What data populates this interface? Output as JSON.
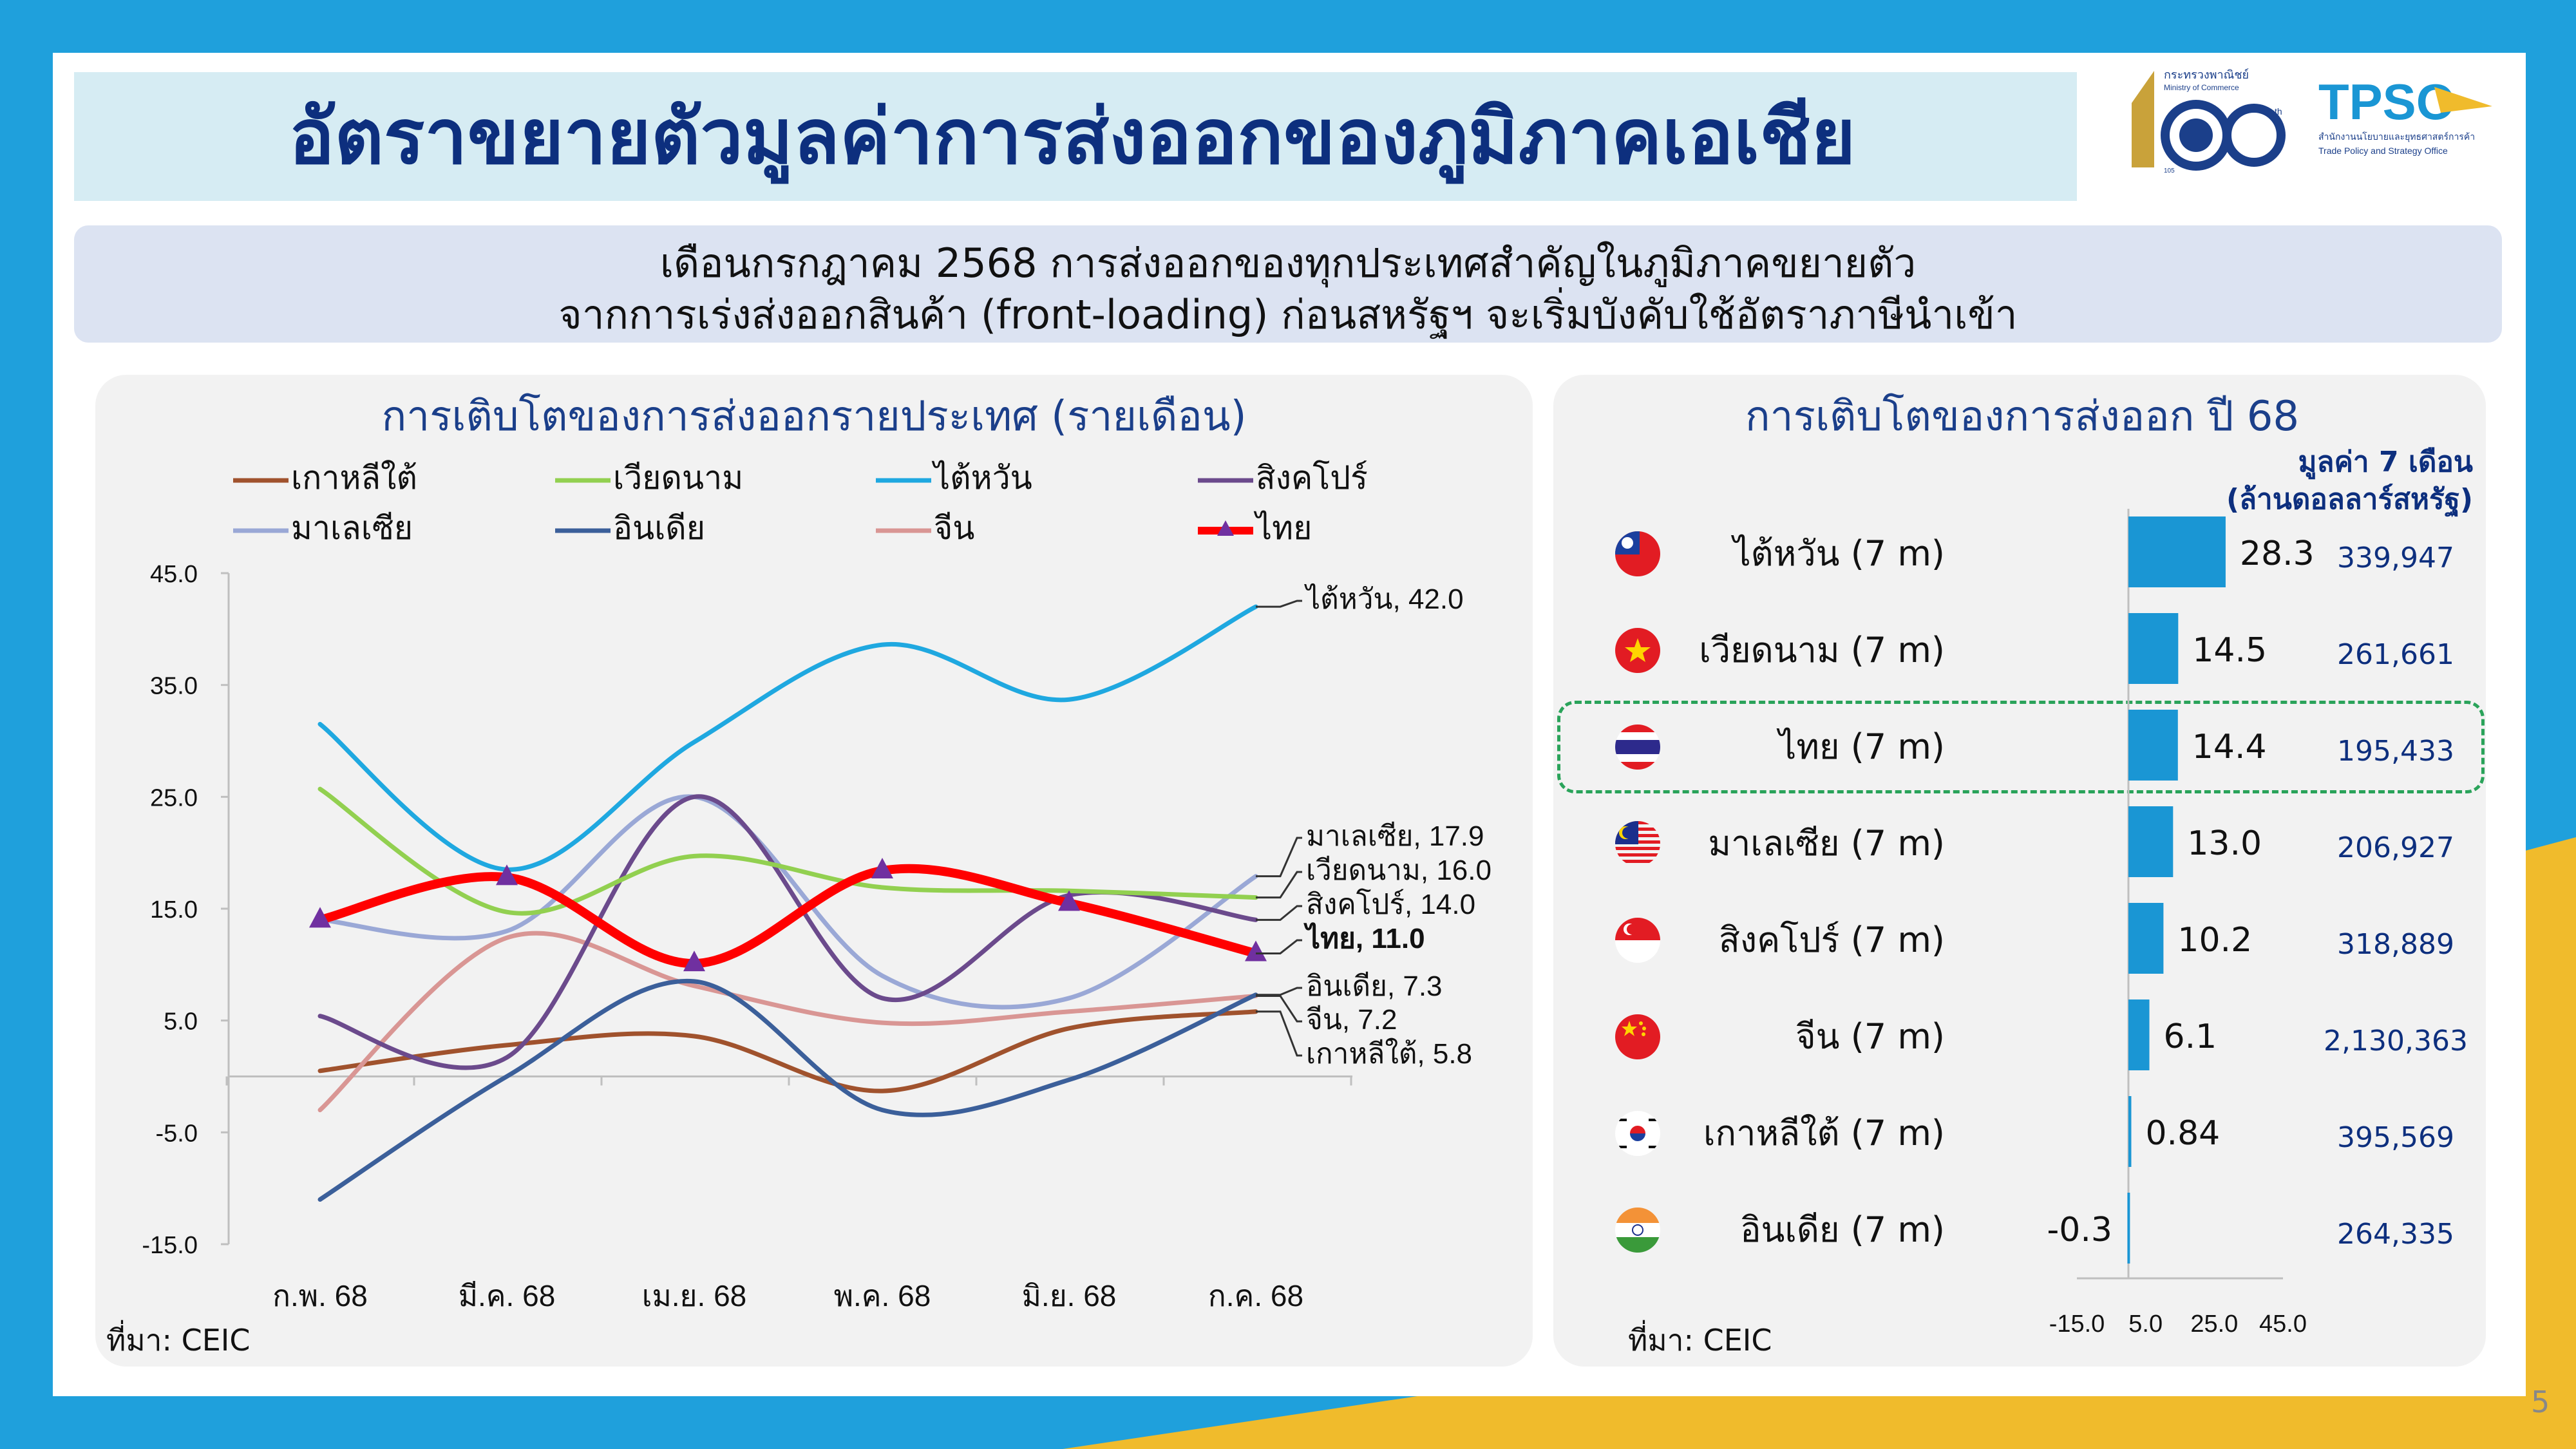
{
  "title": "อัตราขยายตัวมูลค่าการส่งออกของภูมิภาคเอเชีย",
  "subtitle_line1": "เดือนกรกฎาคม 2568 การส่งออกของทุกประเทศสำคัญในภูมิภาคขยายตัว",
  "subtitle_line2": "จากการเร่งส่งออกสินค้า (front-loading) ก่อนสหรัฐฯ จะเริ่มบังคับใช้อัตราภาษีนำเข้า",
  "logos": {
    "moc_line1": "กระทรวงพาณิชย์",
    "moc_line2": "Ministry of Commerce",
    "moc_number": "105",
    "moc_suffix": "th",
    "tpso_name": "TPSO",
    "tpso_th": "สำนักงานนโยบายและยุทธศาสตร์การค้า",
    "tpso_en": "Trade Policy and Strategy Office"
  },
  "page_number": "5",
  "colors": {
    "korea": "#a0522d",
    "vietnam": "#92d050",
    "taiwan": "#1fa8e0",
    "singapore": "#6b4a8c",
    "malaysia": "#9aa8d6",
    "india": "#3b5f9a",
    "china": "#d99694",
    "thailand": "#ff0000",
    "marker": "#7030a0",
    "bar": "#1a96d4"
  },
  "chart_data": [
    {
      "type": "line",
      "title": "การเติบโตของการส่งออกรายประเทศ (รายเดือน)",
      "categories": [
        "ก.พ. 68",
        "มี.ค. 68",
        "เม.ย. 68",
        "พ.ค. 68",
        "มิ.ย. 68",
        "ก.ค. 68"
      ],
      "ylim": [
        -15,
        45
      ],
      "yticks": [
        "45.0",
        "35.0",
        "25.0",
        "15.0",
        "5.0",
        "-5.0",
        "-15.0"
      ],
      "series": [
        {
          "name": "เกาหลีใต้",
          "key": "korea",
          "values": [
            0.5,
            2.8,
            3.6,
            -1.3,
            4.3,
            5.8
          ],
          "end_label": "เกาหลีใต้, 5.8"
        },
        {
          "name": "เวียดนาม",
          "key": "vietnam",
          "values": [
            25.7,
            14.7,
            19.7,
            16.9,
            16.6,
            16.0
          ],
          "end_label": "เวียดนาม, 16.0"
        },
        {
          "name": "ไต้หวัน",
          "key": "taiwan",
          "values": [
            31.5,
            18.5,
            29.9,
            38.6,
            33.7,
            42.0
          ],
          "end_label": "ไต้หวัน, 42.0"
        },
        {
          "name": "สิงคโปร์",
          "key": "singapore",
          "values": [
            5.4,
            1.7,
            25.0,
            7.0,
            16.2,
            14.0
          ],
          "end_label": "สิงคโปร์, 14.0"
        },
        {
          "name": "มาเลเซีย",
          "key": "malaysia",
          "values": [
            14.0,
            13.0,
            25.0,
            9.0,
            7.0,
            17.9
          ],
          "end_label": "มาเลเซีย, 17.9"
        },
        {
          "name": "อินเดีย",
          "key": "india",
          "values": [
            -11.0,
            0.0,
            8.5,
            -3.0,
            -0.3,
            7.3
          ],
          "end_label": "อินเดีย, 7.3"
        },
        {
          "name": "จีน",
          "key": "china",
          "values": [
            -3.0,
            12.4,
            8.1,
            4.8,
            5.8,
            7.2
          ],
          "end_label": "จีน, 7.2"
        },
        {
          "name": "ไทย",
          "key": "thailand",
          "values": [
            14.0,
            17.8,
            10.1,
            18.4,
            15.5,
            11.0
          ],
          "end_label": "ไทย, 11.0"
        }
      ],
      "source": "ที่มา: CEIC"
    },
    {
      "type": "bar",
      "orientation": "horizontal",
      "title": "การเติบโตของการส่งออก ปี 68",
      "value_header_line1": "มูลค่า 7 เดือน",
      "value_header_line2": "(ล้านดอลลาร์สหรัฐ)",
      "xlim": [
        -15,
        45
      ],
      "xticks": [
        "-15.0",
        "5.0",
        "25.0",
        "45.0"
      ],
      "categories": [
        "ไต้หวัน (7 m)",
        "เวียดนาม (7 m)",
        "ไทย (7 m)",
        "มาเลเซีย (7 m)",
        "สิงคโปร์ (7 m)",
        "จีน (7 m)",
        "เกาหลีใต้ (7 m)",
        "อินเดีย (7 m)"
      ],
      "flags": [
        "taiwan-flag-icon",
        "vietnam-flag-icon",
        "thailand-flag-icon",
        "malaysia-flag-icon",
        "singapore-flag-icon",
        "china-flag-icon",
        "south-korea-flag-icon",
        "india-flag-icon"
      ],
      "values": [
        28.3,
        14.5,
        14.4,
        13.0,
        10.2,
        6.1,
        0.84,
        -0.3
      ],
      "value_labels": [
        "28.3",
        "14.5",
        "14.4",
        "13.0",
        "10.2",
        "6.1",
        "0.84",
        "-0.3"
      ],
      "usd_millions": [
        "339,947",
        "261,661",
        "195,433",
        "206,927",
        "318,889",
        "2,130,363",
        "395,569",
        "264,335"
      ],
      "highlight": "ไทย (7 m)",
      "source": "ที่มา: CEIC"
    }
  ]
}
